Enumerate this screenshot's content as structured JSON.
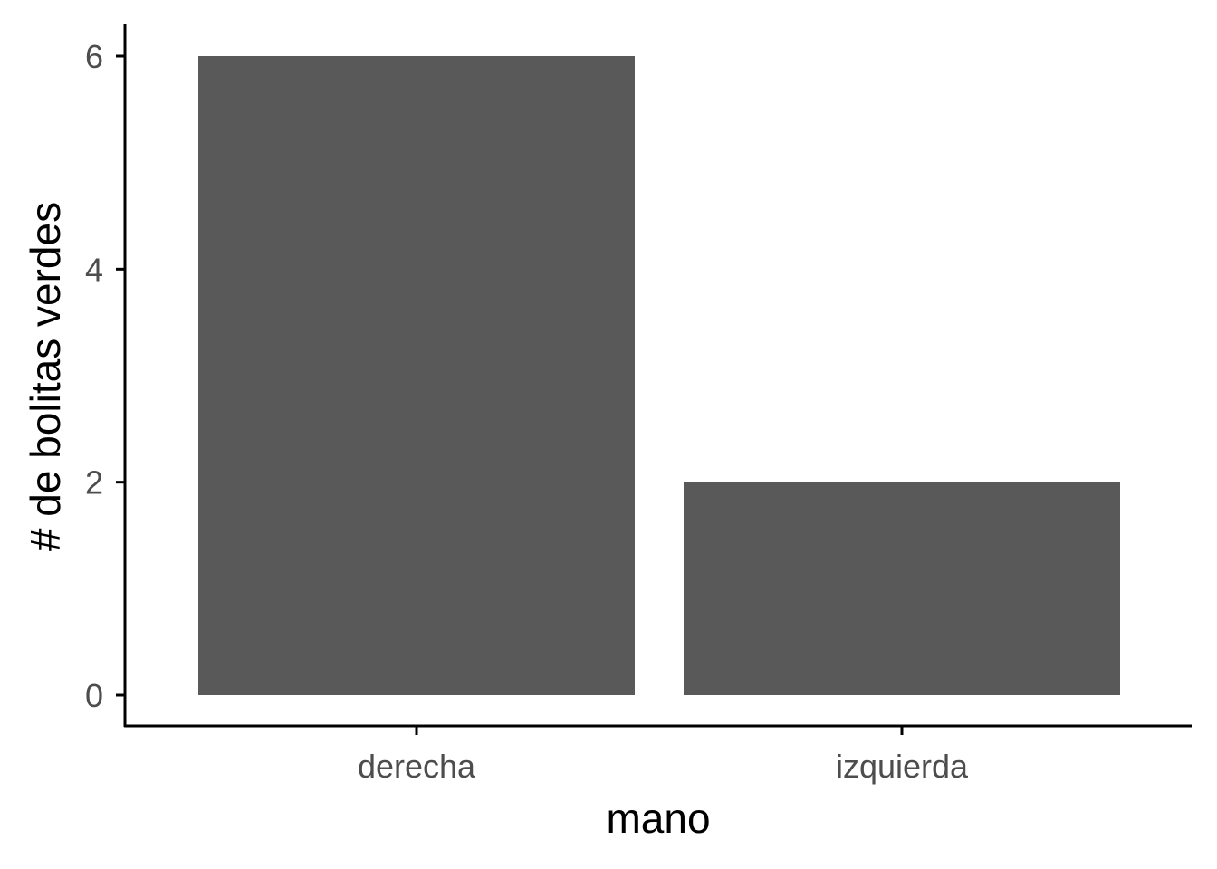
{
  "chart_data": {
    "type": "bar",
    "categories": [
      "derecha",
      "izquierda"
    ],
    "values": [
      6,
      2
    ],
    "xlabel": "mano",
    "ylabel": "# de bolitas verdes",
    "ylim": [
      0,
      6
    ],
    "yticks": [
      "0",
      "2",
      "4",
      "6"
    ],
    "grid": false,
    "legend": "none",
    "bar_color": "#595959",
    "axis_color": "#000000",
    "tick_label_color": "#4d4d4d"
  }
}
